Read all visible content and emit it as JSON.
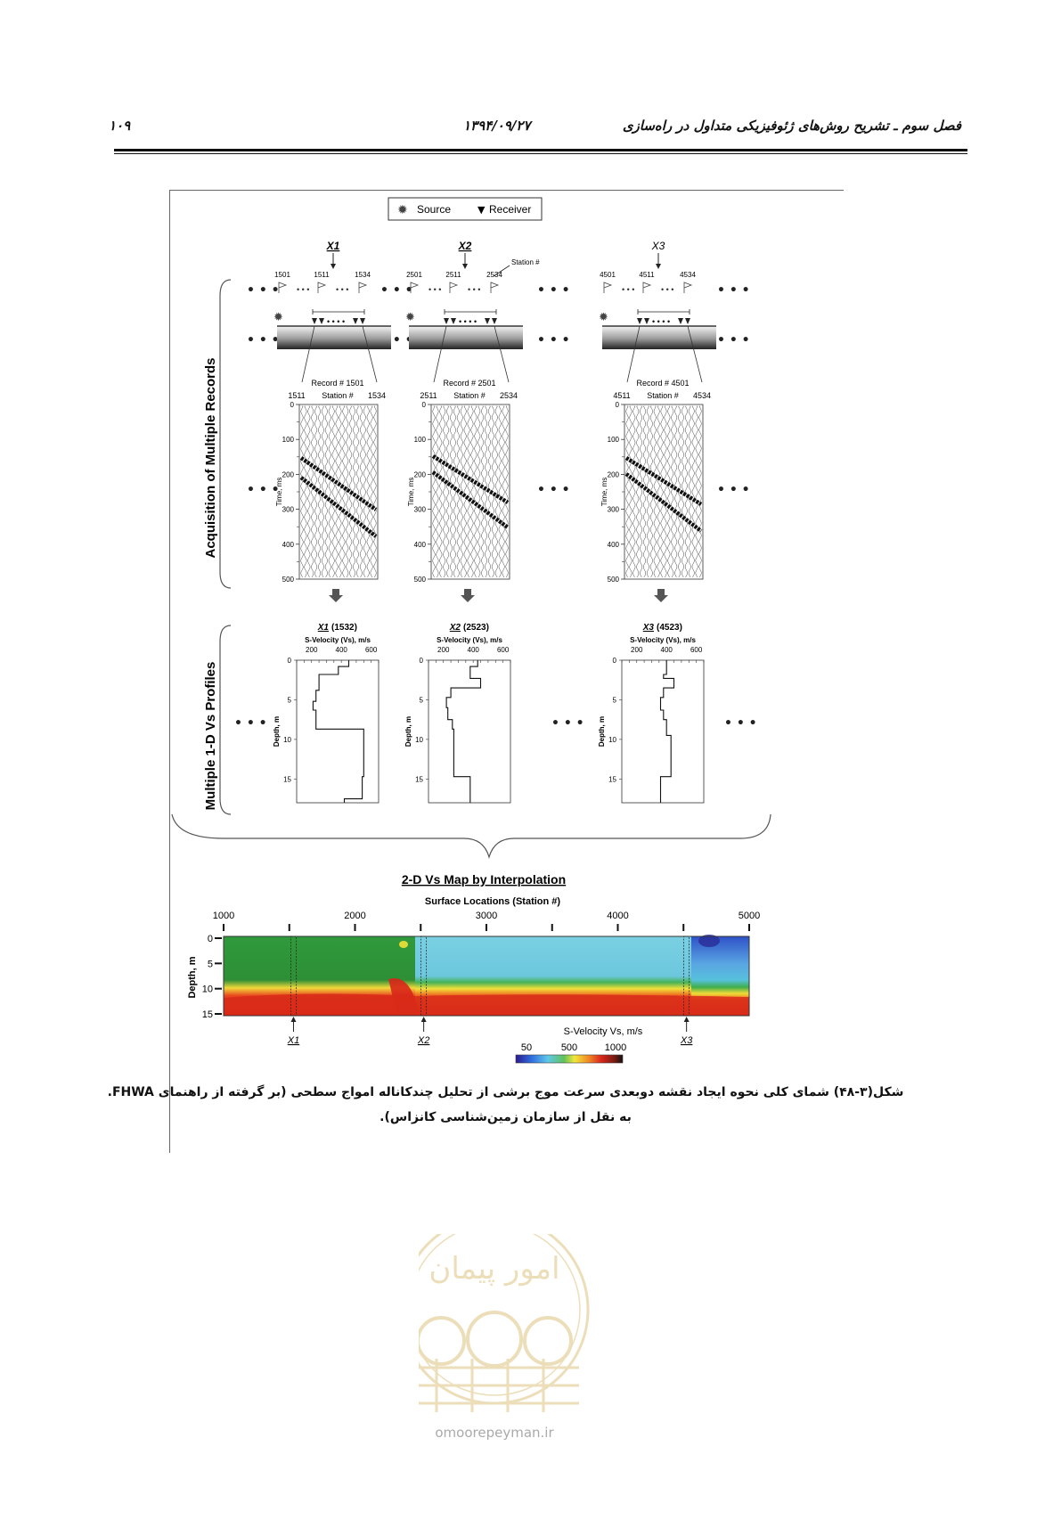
{
  "header": {
    "page_number": "۱۰۹",
    "date": "۱۳۹۴/۰۹/۲۷",
    "chapter_title": "فصل سوم ـ تشریح روش‌های ژئوفیزیکی متداول در راه‌سازی"
  },
  "figure": {
    "legend": {
      "source_label": "Source",
      "receiver_label": "Receiver"
    },
    "station_note": "Station #",
    "side_label_top": "Acquisition of Multiple Records",
    "side_label_mid": "Multiple 1-D Vs Profiles",
    "records": [
      {
        "marker": "X1",
        "flags": [
          "1501",
          "1511",
          "1534"
        ],
        "record_label": "Record # 1501",
        "station_range": [
          "1511",
          "1534"
        ],
        "profile_title_marker": "X1",
        "profile_title_station": "(1532)",
        "vs_step": [
          [
            0,
            450
          ],
          [
            0.8,
            380
          ],
          [
            1.8,
            250
          ],
          [
            3.8,
            230
          ],
          [
            5.2,
            210
          ],
          [
            6.3,
            230
          ],
          [
            8.7,
            300
          ],
          [
            8.7,
            550
          ],
          [
            14.7,
            540
          ],
          [
            17.5,
            420
          ]
        ]
      },
      {
        "marker": "X2",
        "flags": [
          "2501",
          "2511",
          "2534"
        ],
        "record_label": "Record # 2501",
        "station_range": [
          "2511",
          "2534"
        ],
        "profile_title_marker": "X2",
        "profile_title_station": "(2523)",
        "vs_step": [
          [
            0,
            430
          ],
          [
            0.8,
            380
          ],
          [
            2.3,
            450
          ],
          [
            3.5,
            250
          ],
          [
            4.7,
            220
          ],
          [
            6.0,
            230
          ],
          [
            7.5,
            260
          ],
          [
            8.7,
            270
          ],
          [
            14.7,
            380
          ],
          [
            17.5,
            380
          ]
        ]
      },
      {
        "marker": "X3",
        "flags": [
          "4501",
          "4511",
          "4534"
        ],
        "record_label": "Record # 4501",
        "station_range": [
          "4511",
          "4534"
        ],
        "profile_title_marker": "X3",
        "profile_title_station": "(4523)",
        "vs_step": [
          [
            0,
            400
          ],
          [
            1.8,
            380
          ],
          [
            2.3,
            450
          ],
          [
            3.5,
            380
          ],
          [
            4.7,
            360
          ],
          [
            6.3,
            380
          ],
          [
            7.5,
            400
          ],
          [
            9.5,
            430
          ],
          [
            14.7,
            360
          ],
          [
            17.5,
            360
          ]
        ]
      }
    ],
    "seismogram": {
      "y_ticks": [
        "0",
        "100",
        "200",
        "300",
        "400",
        "500"
      ],
      "y_label": "Time, ms",
      "station_header": "Station #"
    },
    "profile": {
      "x_label": "S-Velocity (Vs), m/s",
      "x_ticks": [
        "200",
        "400",
        "600"
      ],
      "y_ticks": [
        "0",
        "5",
        "10",
        "15"
      ],
      "y_label": "Depth, m"
    },
    "map": {
      "title": "2-D Vs Map by Interpolation",
      "top_axis_label": "Surface Locations (Station #)",
      "top_ticks": [
        "1000",
        "2000",
        "3000",
        "4000",
        "5000"
      ],
      "depth_label": "Depth, m",
      "depth_ticks": [
        "0",
        "5",
        "10",
        "15"
      ],
      "markers": [
        "X1",
        "X2",
        "X3"
      ],
      "colorbar_label": "S-Velocity Vs, m/s",
      "colorbar_ticks": [
        "50",
        "500",
        "1000"
      ]
    }
  },
  "caption": {
    "line1": "شکل(۳-۴۸) شمای کلی نحوه ایجاد نقشه دوبعدی سرعت موج برشی از تحلیل چندکاناله امواج سطحی (بر گرفته از راهنمای FHWA.",
    "line2": "به نقل از سازمان زمین‌شناسی کانزاس)."
  },
  "watermark": {
    "seal_text": "امور پیمان",
    "site": "omoorepeyman.ir"
  }
}
